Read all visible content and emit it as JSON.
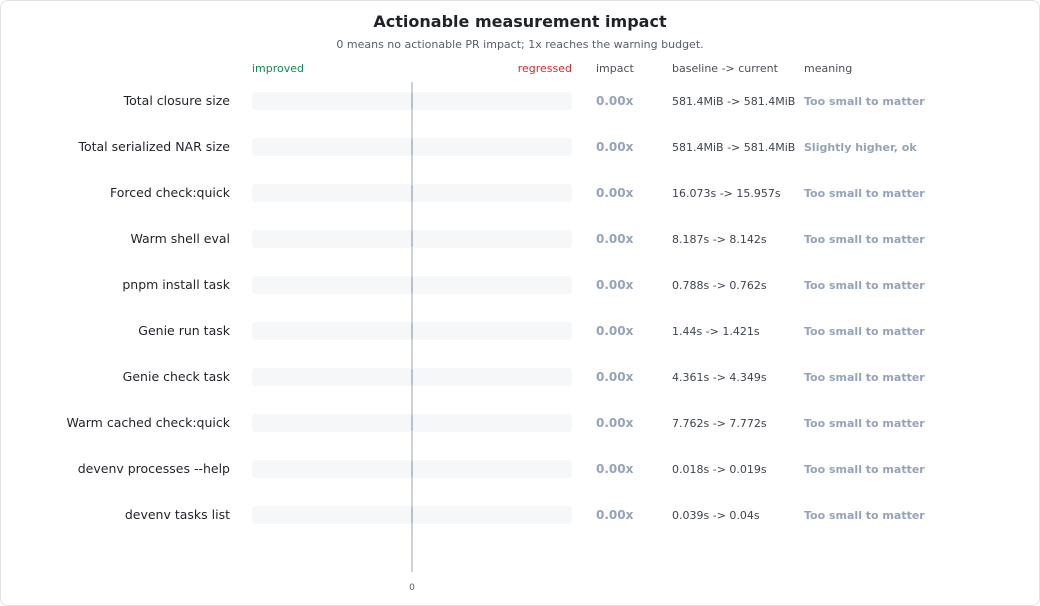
{
  "chart_data": {
    "type": "bar",
    "title": "Actionable measurement impact",
    "subtitle": "0 means no actionable PR impact; 1x reaches the warning budget.",
    "headers": {
      "improved": "improved",
      "regressed": "regressed",
      "impact": "impact",
      "baseline_current": "baseline -> current",
      "meaning": "meaning"
    },
    "zero_tick": "0",
    "xlim": [
      -1,
      1
    ],
    "colors": {
      "improved": "#0f8a56",
      "regressed": "#d62c2c",
      "neutral": "#94a3b8",
      "track": "#f6f7f9"
    },
    "categories": [
      "Total closure size",
      "Total serialized NAR size",
      "Forced check:quick",
      "Warm shell eval",
      "pnpm install task",
      "Genie run task",
      "Genie check task",
      "Warm cached check:quick",
      "devenv processes --help",
      "devenv tasks list"
    ],
    "values": [
      0,
      0,
      0,
      0,
      0,
      0,
      0,
      0,
      0,
      0
    ],
    "impact_labels": [
      "0.00x",
      "0.00x",
      "0.00x",
      "0.00x",
      "0.00x",
      "0.00x",
      "0.00x",
      "0.00x",
      "0.00x",
      "0.00x"
    ],
    "baseline_current": [
      "581.4MiB -> 581.4MiB",
      "581.4MiB -> 581.4MiB",
      "16.073s -> 15.957s",
      "8.187s -> 8.142s",
      "0.788s -> 0.762s",
      "1.44s -> 1.421s",
      "4.361s -> 4.349s",
      "7.762s -> 7.772s",
      "0.018s -> 0.019s",
      "0.039s -> 0.04s"
    ],
    "meanings": [
      "Too small to matter",
      "Slightly higher, ok",
      "Too small to matter",
      "Too small to matter",
      "Too small to matter",
      "Too small to matter",
      "Too small to matter",
      "Too small to matter",
      "Too small to matter",
      "Too small to matter"
    ]
  }
}
